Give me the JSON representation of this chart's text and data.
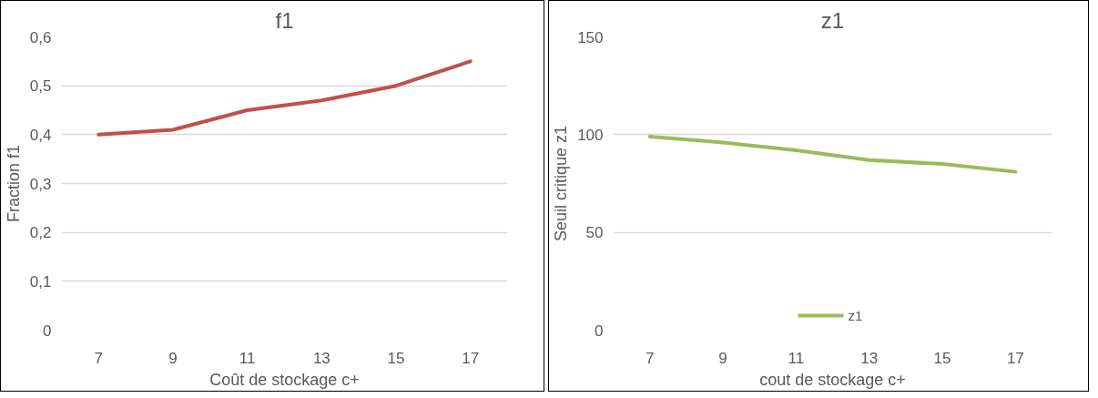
{
  "chart_data": [
    {
      "type": "line",
      "title": "f1",
      "xlabel": "Coût de stockage c+",
      "ylabel": "Fraction f1",
      "categories": [
        "7",
        "9",
        "11",
        "13",
        "15",
        "17"
      ],
      "series": [
        {
          "color": "#c0504d",
          "values": [
            0.4,
            0.41,
            0.45,
            0.47,
            0.5,
            0.55
          ]
        }
      ],
      "ylim": [
        0,
        0.6
      ],
      "yticks": [
        {
          "value": 0,
          "label": "0"
        },
        {
          "value": 0.1,
          "label": "0,1"
        },
        {
          "value": 0.2,
          "label": "0,2"
        },
        {
          "value": 0.3,
          "label": "0,3"
        },
        {
          "value": 0.4,
          "label": "0,4"
        },
        {
          "value": 0.5,
          "label": "0,5"
        },
        {
          "value": 0.6,
          "label": "0,6"
        }
      ],
      "grid": "y",
      "legend": false
    },
    {
      "type": "line",
      "title": "z1",
      "xlabel": "cout de stockage c+",
      "ylabel": "Seuil critique z1",
      "categories": [
        "7",
        "9",
        "11",
        "13",
        "15",
        "17"
      ],
      "series": [
        {
          "name": "z1",
          "color": "#9bbb59",
          "values": [
            99,
            96,
            92,
            87,
            85,
            81
          ]
        }
      ],
      "ylim": [
        0,
        150
      ],
      "yticks": [
        0,
        50,
        100,
        150
      ],
      "grid": "y",
      "legend": "bottom"
    }
  ]
}
